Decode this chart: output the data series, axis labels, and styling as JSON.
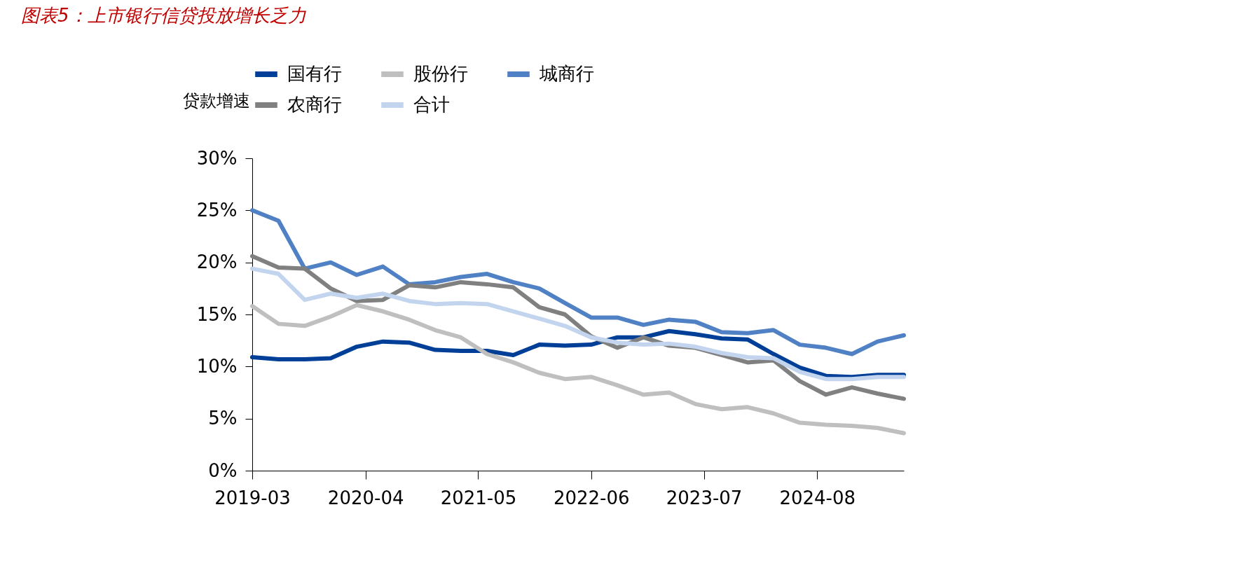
{
  "chart_data": {
    "type": "line",
    "title": "图表5：上市银行信贷投放增长乏力",
    "ylabel": "贷款增速",
    "x": [
      "2019-03",
      "2019-06",
      "2019-09",
      "2019-12",
      "2020-03",
      "2020-06",
      "2020-09",
      "2020-12",
      "2021-03",
      "2021-06",
      "2021-09",
      "2021-12",
      "2022-03",
      "2022-06",
      "2022-09",
      "2022-12",
      "2023-03",
      "2023-06",
      "2023-09",
      "2023-12",
      "2024-03",
      "2024-06",
      "2024-09",
      "2024-12",
      "2025-03",
      "2025-06"
    ],
    "series": [
      {
        "name": "国有行",
        "color": "#003f98",
        "values": [
          10.9,
          10.7,
          10.7,
          10.8,
          11.9,
          12.4,
          12.3,
          11.6,
          11.5,
          11.5,
          11.1,
          12.1,
          12.0,
          12.1,
          12.8,
          12.8,
          13.4,
          13.1,
          12.7,
          12.6,
          11.2,
          9.9,
          9.1,
          9.0,
          9.2,
          9.2
        ]
      },
      {
        "name": "股份行",
        "color": "#bfbfbf",
        "values": [
          15.8,
          14.1,
          13.9,
          14.8,
          15.9,
          15.3,
          14.5,
          13.5,
          12.8,
          11.2,
          10.4,
          9.4,
          8.8,
          9.0,
          8.2,
          7.3,
          7.5,
          6.4,
          5.9,
          6.1,
          5.5,
          4.6,
          4.4,
          4.3,
          4.1,
          3.6
        ]
      },
      {
        "name": "城商行",
        "color": "#4f81c4",
        "values": [
          25.0,
          24.0,
          19.4,
          20.0,
          18.8,
          19.6,
          17.9,
          18.1,
          18.6,
          18.9,
          18.1,
          17.5,
          16.1,
          14.7,
          14.7,
          14.0,
          14.5,
          14.3,
          13.3,
          13.2,
          13.5,
          12.1,
          11.8,
          11.2,
          12.4,
          13.0
        ]
      },
      {
        "name": "农商行",
        "color": "#808080",
        "values": [
          20.6,
          19.5,
          19.4,
          17.5,
          16.3,
          16.4,
          17.8,
          17.6,
          18.1,
          17.9,
          17.6,
          15.7,
          15.0,
          12.9,
          11.8,
          12.8,
          12.0,
          11.8,
          11.1,
          10.4,
          10.6,
          8.6,
          7.3,
          8.0,
          7.4,
          6.9
        ]
      },
      {
        "name": "合计",
        "color": "#c3d5ee",
        "values": [
          19.4,
          18.9,
          16.4,
          17.0,
          16.6,
          17.0,
          16.3,
          16.0,
          16.1,
          16.0,
          15.3,
          14.6,
          13.9,
          12.8,
          12.3,
          12.1,
          12.2,
          11.9,
          11.3,
          10.9,
          10.8,
          9.5,
          8.8,
          8.8,
          9.0,
          9.0
        ]
      }
    ],
    "xlim": [
      "2019-03",
      "2025-06"
    ],
    "xticks": [
      "2019-03",
      "2020-04",
      "2021-05",
      "2022-06",
      "2023-07",
      "2024-08"
    ],
    "ylim": [
      0,
      30
    ],
    "yticks": [
      {
        "value": 0,
        "label": "0%"
      },
      {
        "value": 5,
        "label": "5%"
      },
      {
        "value": 10,
        "label": "10%"
      },
      {
        "value": 15,
        "label": "15%"
      },
      {
        "value": 20,
        "label": "20%"
      },
      {
        "value": 25,
        "label": "25%"
      },
      {
        "value": 30,
        "label": "30%"
      }
    ],
    "legend": "top",
    "grid": false
  }
}
